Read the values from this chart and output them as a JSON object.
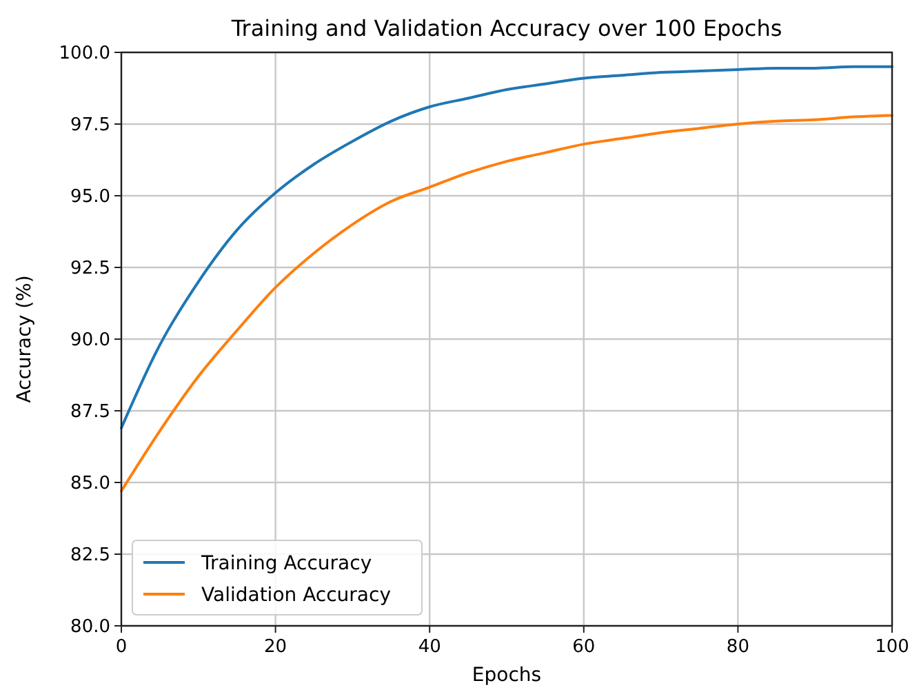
{
  "chart_data": {
    "type": "line",
    "title": "Training and Validation Accuracy over 100 Epochs",
    "xlabel": "Epochs",
    "ylabel": "Accuracy (%)",
    "x": [
      0,
      5,
      10,
      15,
      20,
      25,
      30,
      35,
      40,
      45,
      50,
      55,
      60,
      65,
      70,
      75,
      80,
      85,
      90,
      95,
      100
    ],
    "series": [
      {
        "name": "Training Accuracy",
        "color": "#1f77b4",
        "values": [
          86.9,
          89.8,
          92.0,
          93.8,
          95.1,
          96.1,
          96.9,
          97.6,
          98.1,
          98.4,
          98.7,
          98.9,
          99.1,
          99.2,
          99.3,
          99.35,
          99.4,
          99.45,
          99.45,
          99.5,
          99.5
        ]
      },
      {
        "name": "Validation Accuracy",
        "color": "#ff7f0e",
        "values": [
          84.7,
          86.8,
          88.7,
          90.3,
          91.8,
          93.0,
          94.0,
          94.8,
          95.3,
          95.8,
          96.2,
          96.5,
          96.8,
          97.0,
          97.2,
          97.35,
          97.5,
          97.6,
          97.65,
          97.75,
          97.8
        ]
      }
    ],
    "xlim": [
      0,
      100
    ],
    "xticks": [
      0,
      20,
      40,
      60,
      80,
      100
    ],
    "ylim": [
      80,
      100
    ],
    "yticks": [
      {
        "value": 80,
        "label": "80.0"
      },
      {
        "value": 82.5,
        "label": "82.5"
      },
      {
        "value": 85,
        "label": "85.0"
      },
      {
        "value": 87.5,
        "label": "87.5"
      },
      {
        "value": 90,
        "label": "90.0"
      },
      {
        "value": 92.5,
        "label": "92.5"
      },
      {
        "value": 95,
        "label": "95.0"
      },
      {
        "value": 97.5,
        "label": "97.5"
      },
      {
        "value": 100,
        "label": "100.0"
      }
    ],
    "grid": true,
    "legend": "bottom left",
    "marker": "none",
    "line_style": "solid"
  }
}
